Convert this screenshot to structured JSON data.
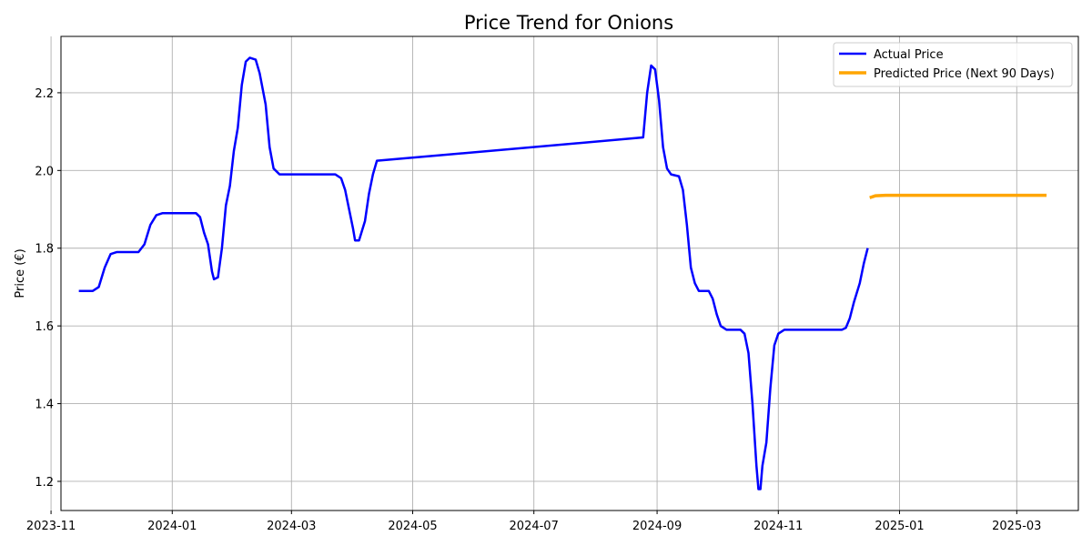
{
  "chart_data": {
    "type": "line",
    "title": "Price Trend for Onions",
    "xlabel": "",
    "ylabel": "Price (€)",
    "xlim": [
      "2023-11-06",
      "2025-04-01"
    ],
    "ylim": [
      1.125,
      2.345
    ],
    "x_ticks": [
      "2023-11",
      "2024-01",
      "2024-03",
      "2024-05",
      "2024-07",
      "2024-09",
      "2024-11",
      "2025-01",
      "2025-03"
    ],
    "y_ticks": [
      "1.2",
      "1.4",
      "1.6",
      "1.8",
      "2.0",
      "2.2"
    ],
    "grid": true,
    "legend": "top-right",
    "series": [
      {
        "name": "Actual Price",
        "color": "#0000ff",
        "points": [
          [
            "2023-11-15",
            1.69
          ],
          [
            "2023-11-22",
            1.69
          ],
          [
            "2023-11-25",
            1.7
          ],
          [
            "2023-11-28",
            1.75
          ],
          [
            "2023-12-01",
            1.785
          ],
          [
            "2023-12-04",
            1.79
          ],
          [
            "2023-12-15",
            1.79
          ],
          [
            "2023-12-18",
            1.81
          ],
          [
            "2023-12-21",
            1.86
          ],
          [
            "2023-12-24",
            1.885
          ],
          [
            "2023-12-27",
            1.89
          ],
          [
            "2024-01-13",
            1.89
          ],
          [
            "2024-01-15",
            1.88
          ],
          [
            "2024-01-17",
            1.84
          ],
          [
            "2024-01-19",
            1.81
          ],
          [
            "2024-01-21",
            1.74
          ],
          [
            "2024-01-22",
            1.72
          ],
          [
            "2024-01-24",
            1.725
          ],
          [
            "2024-01-26",
            1.8
          ],
          [
            "2024-01-28",
            1.91
          ],
          [
            "2024-01-30",
            1.96
          ],
          [
            "2024-02-01",
            2.05
          ],
          [
            "2024-02-03",
            2.11
          ],
          [
            "2024-02-05",
            2.22
          ],
          [
            "2024-02-07",
            2.28
          ],
          [
            "2024-02-09",
            2.29
          ],
          [
            "2024-02-12",
            2.285
          ],
          [
            "2024-02-14",
            2.25
          ],
          [
            "2024-02-17",
            2.17
          ],
          [
            "2024-02-19",
            2.06
          ],
          [
            "2024-02-21",
            2.005
          ],
          [
            "2024-02-24",
            1.99
          ],
          [
            "2024-03-01",
            1.99
          ],
          [
            "2024-03-23",
            1.99
          ],
          [
            "2024-03-26",
            1.98
          ],
          [
            "2024-03-28",
            1.95
          ],
          [
            "2024-03-30",
            1.9
          ],
          [
            "2024-04-01",
            1.85
          ],
          [
            "2024-04-02",
            1.82
          ],
          [
            "2024-04-04",
            1.82
          ],
          [
            "2024-04-07",
            1.87
          ],
          [
            "2024-04-09",
            1.94
          ],
          [
            "2024-04-11",
            1.99
          ],
          [
            "2024-04-13",
            2.025
          ],
          [
            "2024-08-25",
            2.085
          ],
          [
            "2024-08-27",
            2.2
          ],
          [
            "2024-08-29",
            2.27
          ],
          [
            "2024-08-31",
            2.26
          ],
          [
            "2024-09-02",
            2.18
          ],
          [
            "2024-09-04",
            2.06
          ],
          [
            "2024-09-06",
            2.005
          ],
          [
            "2024-09-08",
            1.99
          ],
          [
            "2024-09-12",
            1.985
          ],
          [
            "2024-09-14",
            1.95
          ],
          [
            "2024-09-16",
            1.86
          ],
          [
            "2024-09-18",
            1.75
          ],
          [
            "2024-09-20",
            1.71
          ],
          [
            "2024-09-22",
            1.69
          ],
          [
            "2024-09-27",
            1.69
          ],
          [
            "2024-09-29",
            1.67
          ],
          [
            "2024-10-01",
            1.63
          ],
          [
            "2024-10-03",
            1.6
          ],
          [
            "2024-10-06",
            1.59
          ],
          [
            "2024-10-13",
            1.59
          ],
          [
            "2024-10-15",
            1.58
          ],
          [
            "2024-10-17",
            1.53
          ],
          [
            "2024-10-19",
            1.4
          ],
          [
            "2024-10-21",
            1.24
          ],
          [
            "2024-10-22",
            1.18
          ],
          [
            "2024-10-23",
            1.18
          ],
          [
            "2024-10-24",
            1.24
          ],
          [
            "2024-10-26",
            1.3
          ],
          [
            "2024-10-28",
            1.44
          ],
          [
            "2024-10-30",
            1.55
          ],
          [
            "2024-11-01",
            1.58
          ],
          [
            "2024-11-04",
            1.59
          ],
          [
            "2024-12-03",
            1.59
          ],
          [
            "2024-12-05",
            1.595
          ],
          [
            "2024-12-07",
            1.62
          ],
          [
            "2024-12-09",
            1.66
          ],
          [
            "2024-12-12",
            1.71
          ],
          [
            "2024-12-14",
            1.76
          ],
          [
            "2024-12-16",
            1.8
          ]
        ]
      },
      {
        "name": "Predicted Price (Next 90 Days)",
        "color": "#ffa500",
        "points": [
          [
            "2024-12-17",
            1.93
          ],
          [
            "2024-12-20",
            1.935
          ],
          [
            "2024-12-25",
            1.936
          ],
          [
            "2025-02-01",
            1.936
          ],
          [
            "2025-03-16",
            1.936
          ]
        ]
      }
    ]
  }
}
